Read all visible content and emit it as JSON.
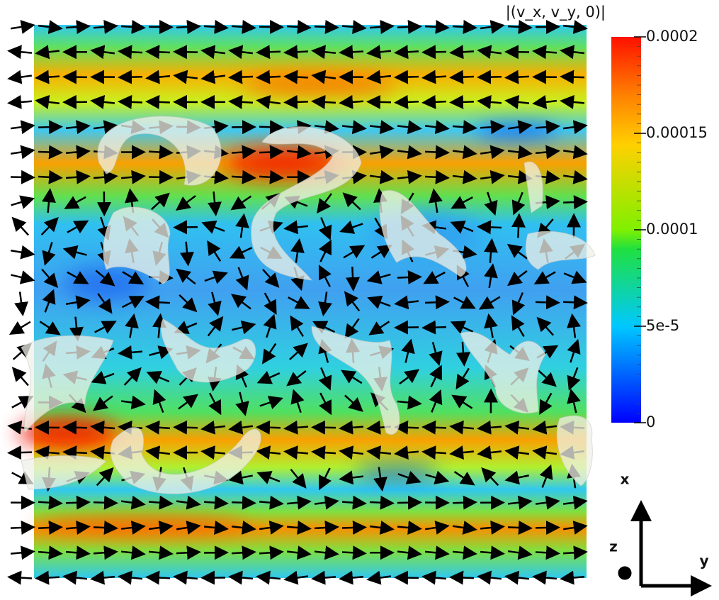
{
  "chart_data": {
    "type": "heatmap",
    "title": "|(v_x, v_y, 0)|",
    "colorbar": {
      "lim": [
        0,
        0.0002
      ],
      "ticks": [
        0,
        {
          "value": 5e-05,
          "label": "5e-5"
        },
        0.0001,
        0.00015,
        0.0002
      ]
    },
    "axis_labels": {
      "x": "x",
      "y": "y",
      "z": "z"
    }
  }
}
